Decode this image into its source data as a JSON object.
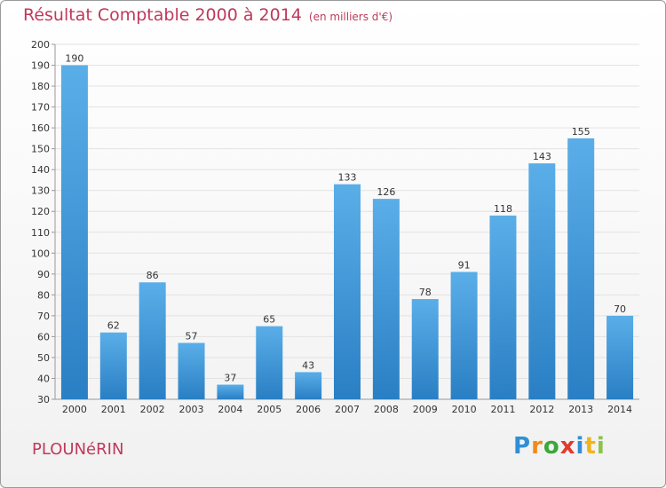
{
  "chart_data": {
    "type": "bar",
    "title": "Résultat Comptable 2000 à 2014",
    "subtitle": "(en milliers d'€)",
    "categories": [
      "2000",
      "2001",
      "2002",
      "2003",
      "2004",
      "2005",
      "2006",
      "2007",
      "2008",
      "2009",
      "2010",
      "2011",
      "2012",
      "2013",
      "2014"
    ],
    "values": [
      190,
      62,
      86,
      57,
      37,
      65,
      43,
      133,
      126,
      78,
      91,
      118,
      143,
      155,
      70
    ],
    "ylim": [
      30,
      200
    ],
    "ytick_step": 10,
    "xlabel": "",
    "ylabel": "",
    "grid": true,
    "bar_color_top": "#5aaee8",
    "bar_color_bottom": "#2a7fc4"
  },
  "footer": {
    "place_name": "PLOUNéRIN",
    "brand": [
      "P",
      "r",
      "o",
      "x",
      "i",
      "t",
      "i"
    ]
  }
}
